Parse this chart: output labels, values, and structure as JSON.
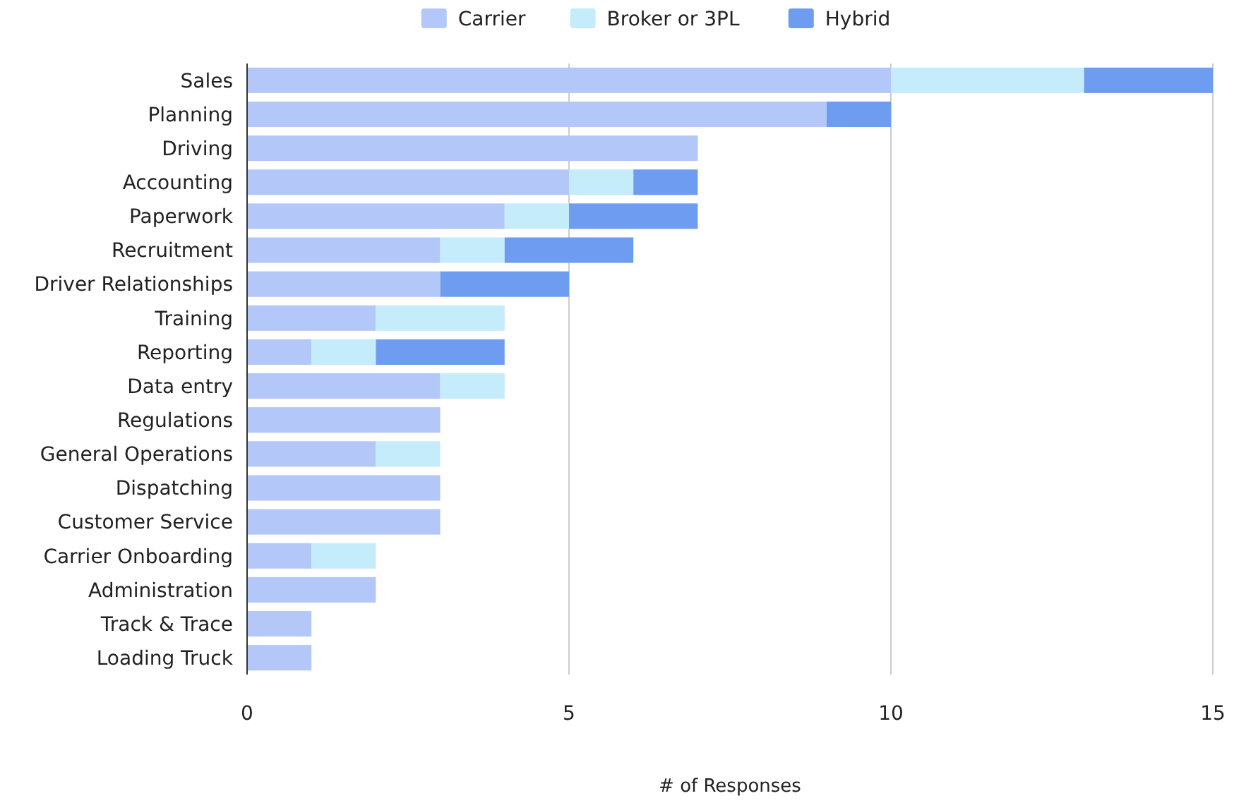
{
  "chart_data": {
    "type": "bar",
    "orientation": "horizontal",
    "stacked": true,
    "xlabel": "# of Responses",
    "categories": [
      "Sales",
      "Planning",
      "Driving",
      "Accounting",
      "Paperwork",
      "Recruitment",
      "Driver Relationships",
      "Training",
      "Reporting",
      "Data entry",
      "Regulations",
      "General Operations",
      "Dispatching",
      "Customer Service",
      "Carrier Onboarding",
      "Administration",
      "Track & Trace",
      "Loading Truck"
    ],
    "series": [
      {
        "name": "Carrier",
        "color": "#b3c8f8",
        "values": [
          10,
          9,
          7,
          5,
          4,
          3,
          3,
          2,
          1,
          3,
          3,
          2,
          3,
          3,
          1,
          2,
          1,
          1
        ]
      },
      {
        "name": "Broker or 3PL",
        "color": "#c5ecfb",
        "values": [
          3,
          0,
          0,
          1,
          1,
          1,
          0,
          2,
          1,
          1,
          0,
          1,
          0,
          0,
          1,
          0,
          0,
          0
        ]
      },
      {
        "name": "Hybrid",
        "color": "#6e9cf0",
        "values": [
          2,
          1,
          0,
          1,
          2,
          2,
          2,
          0,
          2,
          0,
          0,
          0,
          0,
          0,
          0,
          0,
          0,
          0
        ]
      }
    ],
    "xlim": [
      0,
      15
    ],
    "xticks": [
      0,
      5,
      10,
      15
    ],
    "grid": "x",
    "legend": "top"
  }
}
